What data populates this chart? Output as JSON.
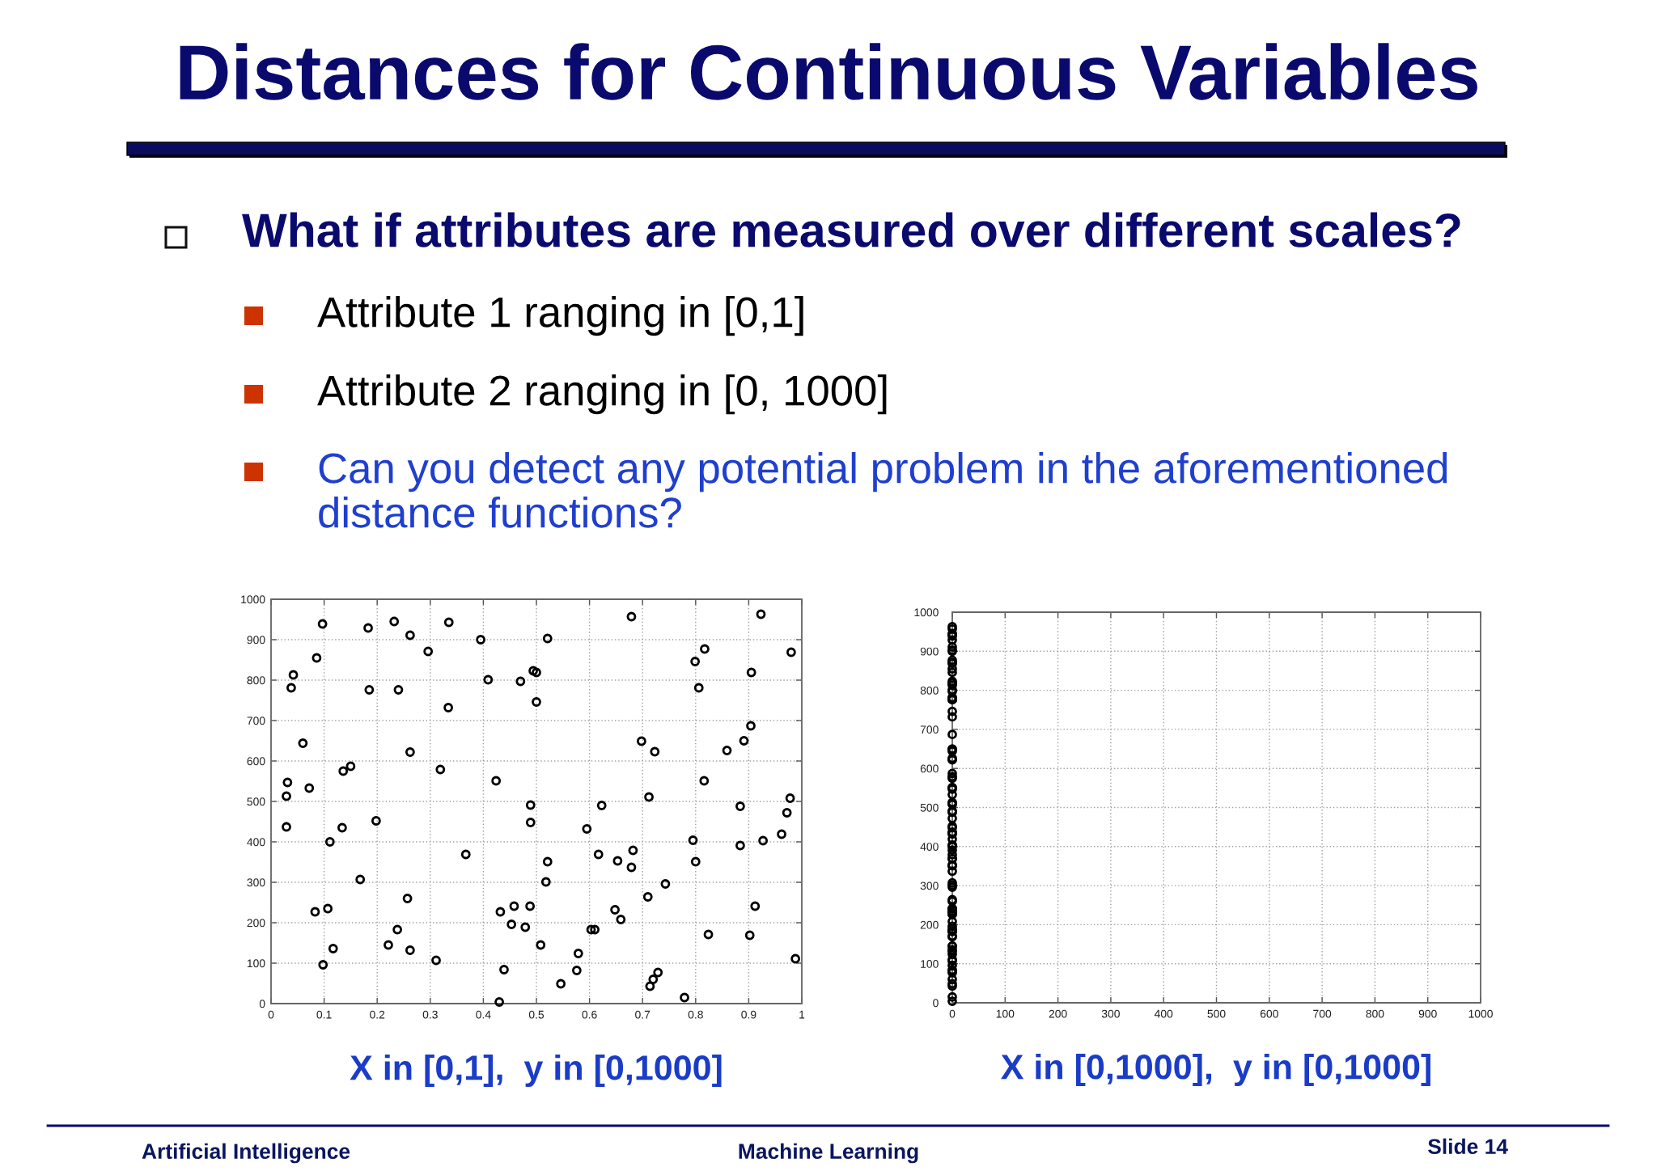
{
  "chart_data": [
    {
      "type": "scatter",
      "title": "Distances for Continuous Variables",
      "subtitle": "What if attributes are measured over different scales?",
      "annotations": [
        "Attribute 1 ranging in [0,1]",
        "Attribute 2 ranging in [0, 1000]",
        "Can you detect any potential problem in the aforementioned\ndistance functions?"
      ],
      "xlabel": "X in [0,1],  y in [0,1000]",
      "x": [
        0.097,
        0.183,
        0.232,
        0.335,
        0.262,
        0.296,
        0.395,
        0.086,
        0.042,
        0.038,
        0.185,
        0.24,
        0.409,
        0.47,
        0.334,
        0.06,
        0.262,
        0.136,
        0.15,
        0.319,
        0.424,
        0.031,
        0.029,
        0.072,
        0.521,
        0.679,
        0.494,
        0.5,
        0.5,
        0.923,
        0.817,
        0.799,
        0.98,
        0.905,
        0.806,
        0.904,
        0.891,
        0.859,
        0.698,
        0.723,
        0.816,
        0.712,
        0.489,
        0.623,
        0.884,
        0.978,
        0.972,
        0.029,
        0.134,
        0.198,
        0.111,
        0.168,
        0.367,
        0.489,
        0.083,
        0.107,
        0.257,
        0.238,
        0.221,
        0.262,
        0.117,
        0.098,
        0.311,
        0.432,
        0.458,
        0.488,
        0.453,
        0.479,
        0.439,
        0.43,
        0.595,
        0.617,
        0.521,
        0.518,
        0.653,
        0.682,
        0.679,
        0.743,
        0.71,
        0.648,
        0.659,
        0.603,
        0.61,
        0.508,
        0.579,
        0.576,
        0.546,
        0.729,
        0.72,
        0.714,
        0.779,
        0.795,
        0.8,
        0.824,
        0.902,
        0.912,
        0.884,
        0.927,
        0.962,
        0.988
      ],
      "series": [
        {
          "color": "#000000",
          "values": [
            939,
            929,
            945,
            943,
            911,
            871,
            900,
            855,
            813,
            781,
            776,
            776,
            801,
            797,
            732,
            644,
            622,
            575,
            587,
            579,
            551,
            547,
            513,
            533,
            903,
            957,
            823,
            819,
            746,
            963,
            877,
            846,
            869,
            819,
            781,
            687,
            650,
            626,
            649,
            623,
            551,
            511,
            491,
            490,
            488,
            508,
            472,
            437,
            435,
            452,
            400,
            307,
            369,
            448,
            227,
            235,
            260,
            183,
            145,
            132,
            136,
            96,
            107,
            227,
            241,
            241,
            196,
            189,
            84,
            4,
            432,
            369,
            351,
            301,
            353,
            379,
            337,
            296,
            264,
            232,
            208,
            183,
            183,
            145,
            124,
            82,
            49,
            77,
            60,
            43,
            15,
            404,
            351,
            171,
            169,
            241,
            391,
            403,
            419,
            111
          ]
        }
      ],
      "xlim": [
        0,
        1
      ],
      "ylim": [
        0,
        1000
      ],
      "xticks": [
        0,
        0.1,
        0.2,
        0.3,
        0.4,
        0.5,
        0.6,
        0.7,
        0.8,
        0.9,
        1
      ],
      "yticks": [
        0,
        100,
        200,
        300,
        400,
        500,
        600,
        700,
        800,
        900,
        1000
      ],
      "grid": true,
      "marker": "circle"
    },
    {
      "type": "scatter",
      "xlabel": "X in [0,1000],  y in [0,1000]",
      "annotations": [
        "Artificial Intelligence",
        "Machine Learning",
        "Slide 14"
      ],
      "x": [
        0,
        0,
        0,
        0,
        0,
        0,
        0,
        0,
        0,
        0,
        0,
        0,
        0,
        0,
        0,
        0,
        0,
        0,
        0,
        0,
        0,
        0,
        0,
        0,
        0,
        0,
        0,
        0,
        0,
        0,
        0,
        0,
        0,
        0,
        0,
        0,
        0,
        0,
        0,
        0,
        0,
        0,
        0,
        0,
        0,
        0,
        0,
        0,
        0,
        0,
        0,
        0,
        0,
        0,
        0,
        0,
        0,
        0,
        0,
        0,
        0,
        0,
        0,
        0,
        0,
        0,
        0,
        0,
        0,
        0,
        0,
        0,
        0,
        0,
        0,
        0,
        0,
        0,
        0,
        0,
        0,
        0,
        0,
        0,
        0,
        0,
        0,
        0,
        0,
        0,
        0,
        0,
        0,
        0,
        0,
        0,
        0,
        0,
        0,
        0
      ],
      "series": [
        {
          "color": "#000000",
          "values": [
            939,
            929,
            945,
            943,
            911,
            871,
            900,
            855,
            813,
            781,
            776,
            776,
            801,
            797,
            732,
            644,
            622,
            575,
            587,
            579,
            551,
            547,
            513,
            533,
            903,
            957,
            823,
            819,
            746,
            963,
            877,
            846,
            869,
            819,
            781,
            687,
            650,
            626,
            649,
            623,
            551,
            511,
            491,
            490,
            488,
            508,
            472,
            437,
            435,
            452,
            400,
            307,
            369,
            448,
            227,
            235,
            260,
            183,
            145,
            132,
            136,
            96,
            107,
            227,
            241,
            241,
            196,
            189,
            84,
            4,
            432,
            369,
            351,
            301,
            353,
            379,
            337,
            296,
            264,
            232,
            208,
            183,
            183,
            145,
            124,
            82,
            49,
            77,
            60,
            43,
            15,
            404,
            351,
            171,
            169,
            241,
            391,
            403,
            419,
            111
          ]
        }
      ],
      "xlim": [
        0,
        1000
      ],
      "ylim": [
        0,
        1000
      ],
      "xticks": [
        0,
        100,
        200,
        300,
        400,
        500,
        600,
        700,
        800,
        900,
        1000
      ],
      "yticks": [
        0,
        100,
        200,
        300,
        400,
        500,
        600,
        700,
        800,
        900,
        1000
      ],
      "grid": true,
      "marker": "circle"
    }
  ]
}
